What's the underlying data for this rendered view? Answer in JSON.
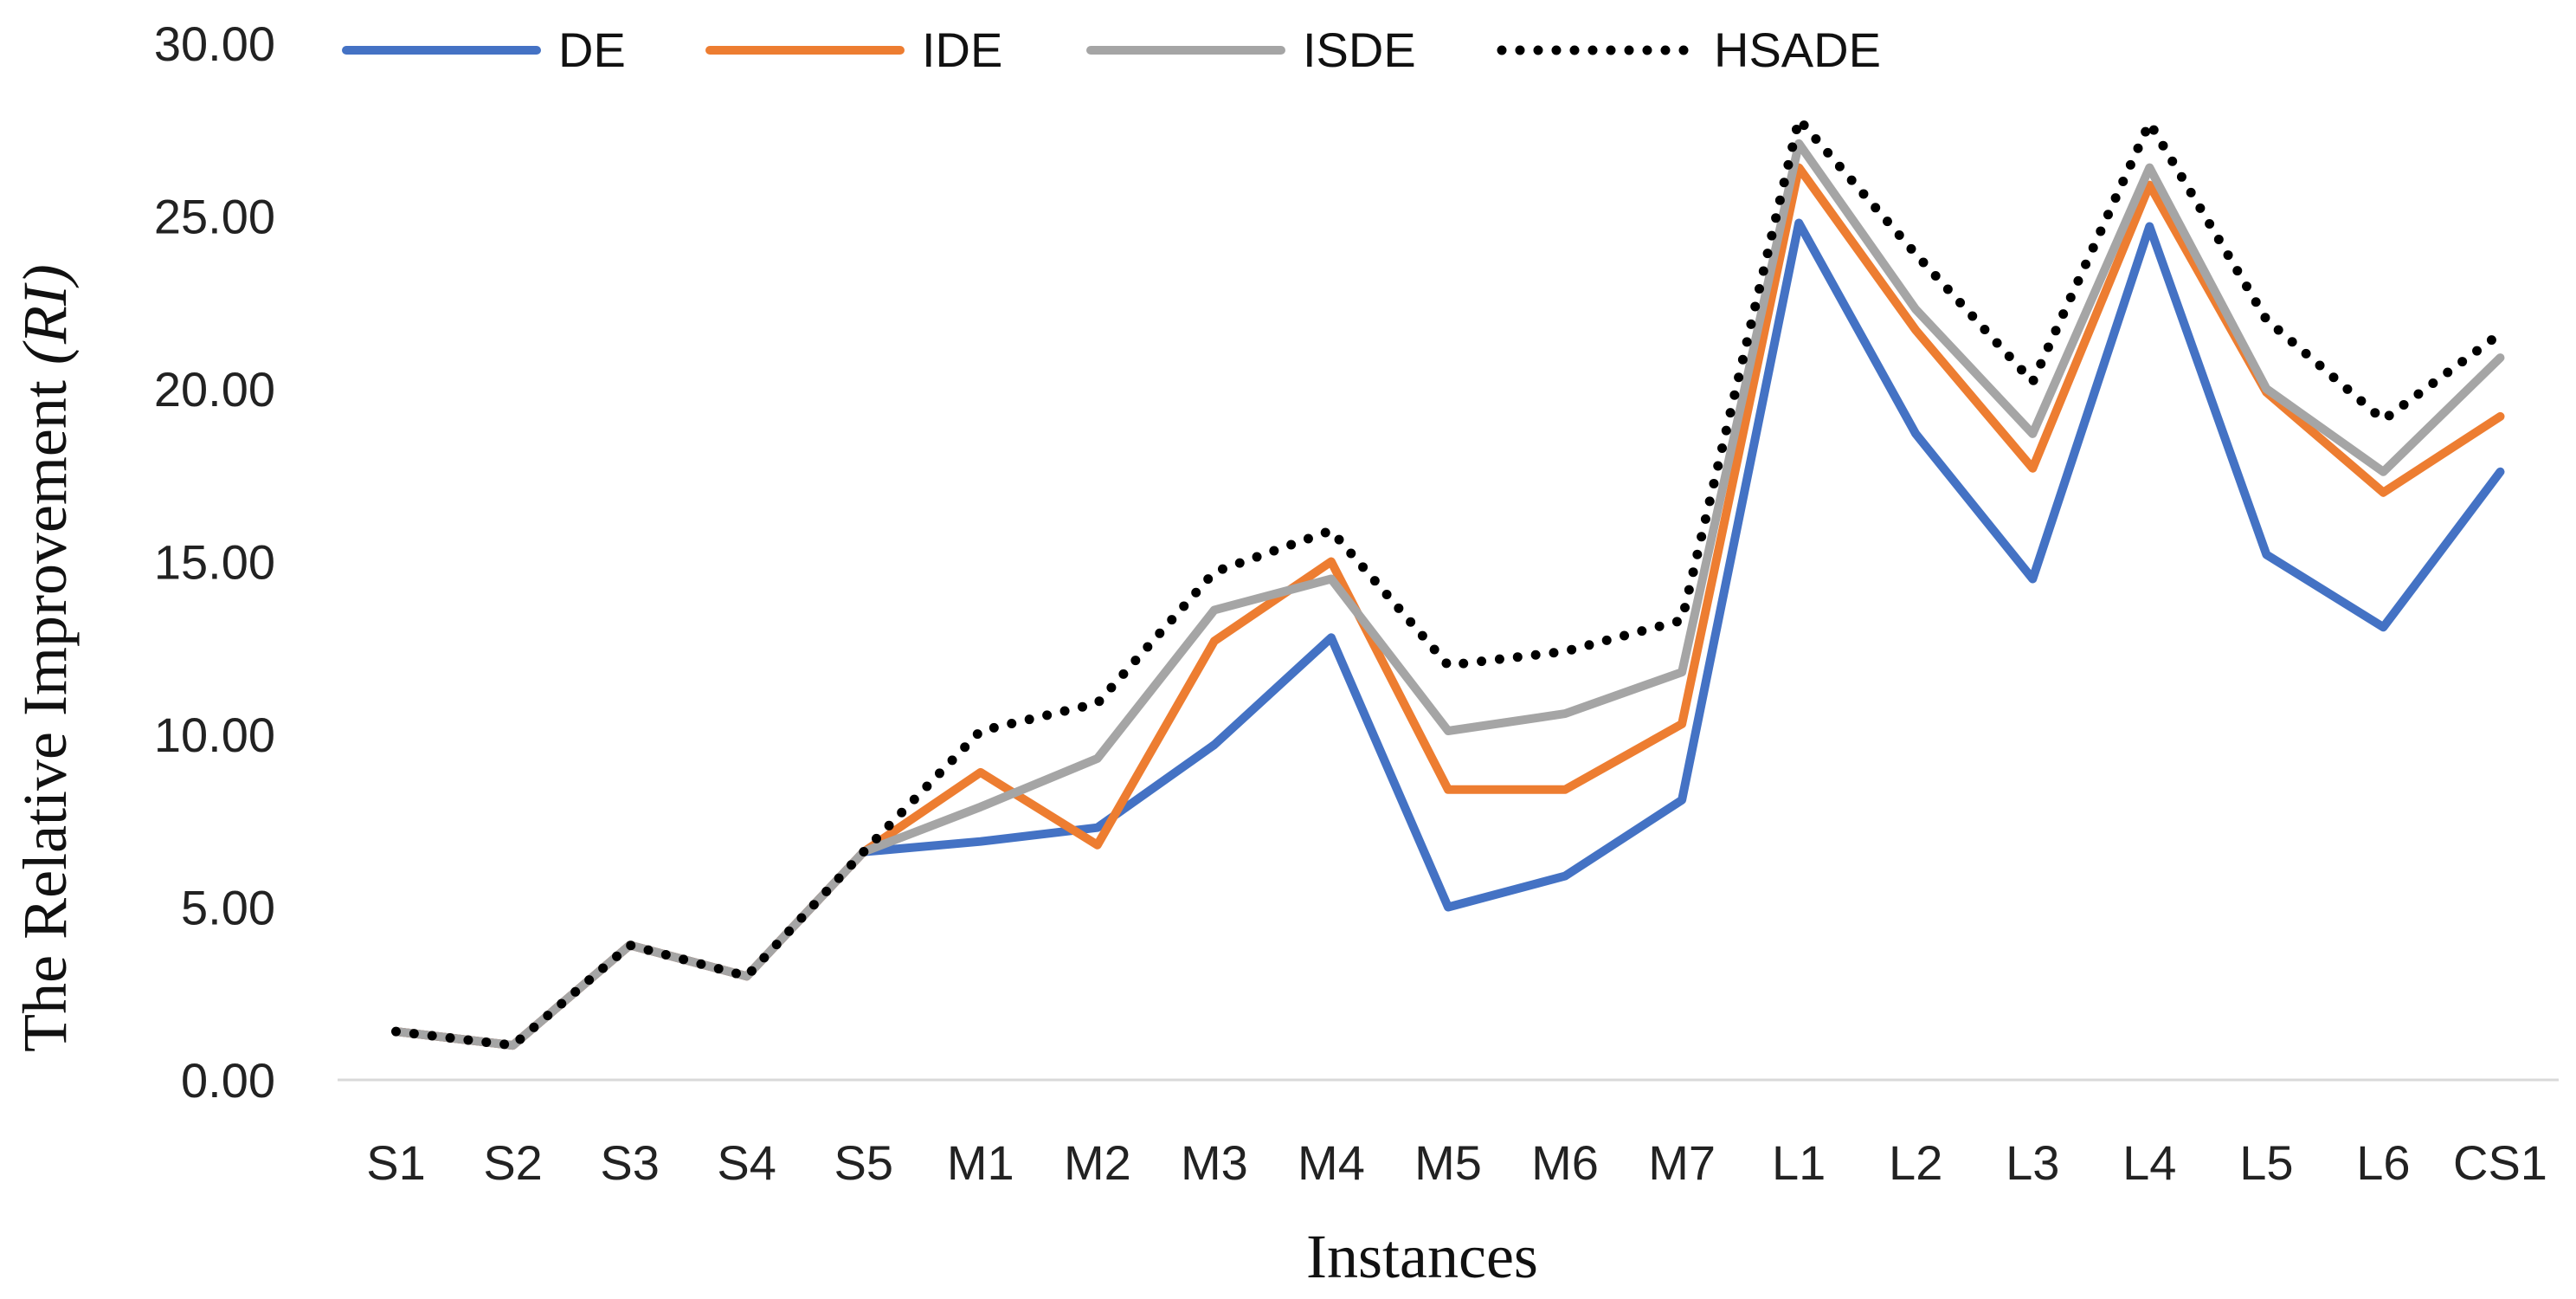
{
  "chart_data": {
    "type": "line",
    "title": "",
    "xlabel": "Instances",
    "ylabel_main": "The Relative Improvement ",
    "ylabel_italic": "(RI)",
    "ylim": [
      0,
      30
    ],
    "yticks": [
      "0.00",
      "5.00",
      "10.00",
      "15.00",
      "20.00",
      "25.00",
      "30.00"
    ],
    "gridlines": false,
    "legend_position": "top",
    "categories": [
      "S1",
      "S2",
      "S3",
      "S4",
      "S5",
      "M1",
      "M2",
      "M3",
      "M4",
      "M5",
      "M6",
      "M7",
      "L1",
      "L2",
      "L3",
      "L4",
      "L5",
      "L6",
      "CS1"
    ],
    "series": [
      {
        "name": "DE",
        "color": "#4472C4",
        "style": "solid",
        "values": [
          1.4,
          1.0,
          3.9,
          3.0,
          6.6,
          6.9,
          7.3,
          9.7,
          12.8,
          5.0,
          5.9,
          8.1,
          24.8,
          18.7,
          14.5,
          24.7,
          15.2,
          13.1,
          17.6
        ]
      },
      {
        "name": "IDE",
        "color": "#ED7D31",
        "style": "solid",
        "values": [
          1.4,
          1.0,
          3.9,
          3.0,
          6.6,
          8.9,
          6.8,
          12.7,
          15.0,
          8.4,
          8.4,
          10.3,
          26.4,
          21.7,
          17.7,
          25.9,
          19.9,
          17.0,
          19.2
        ]
      },
      {
        "name": "ISDE",
        "color": "#A5A5A5",
        "style": "solid",
        "values": [
          1.4,
          1.0,
          3.9,
          3.0,
          6.6,
          7.9,
          9.3,
          13.6,
          14.5,
          10.1,
          10.6,
          11.8,
          27.1,
          22.3,
          18.7,
          26.4,
          20.0,
          17.6,
          20.9
        ]
      },
      {
        "name": "HSADE",
        "color": "#000000",
        "style": "dotted",
        "values": [
          1.4,
          1.0,
          3.9,
          3.0,
          6.6,
          10.1,
          10.9,
          14.7,
          15.9,
          12.0,
          12.4,
          13.3,
          27.8,
          23.9,
          20.2,
          27.7,
          22.0,
          19.1,
          21.6
        ]
      }
    ]
  }
}
